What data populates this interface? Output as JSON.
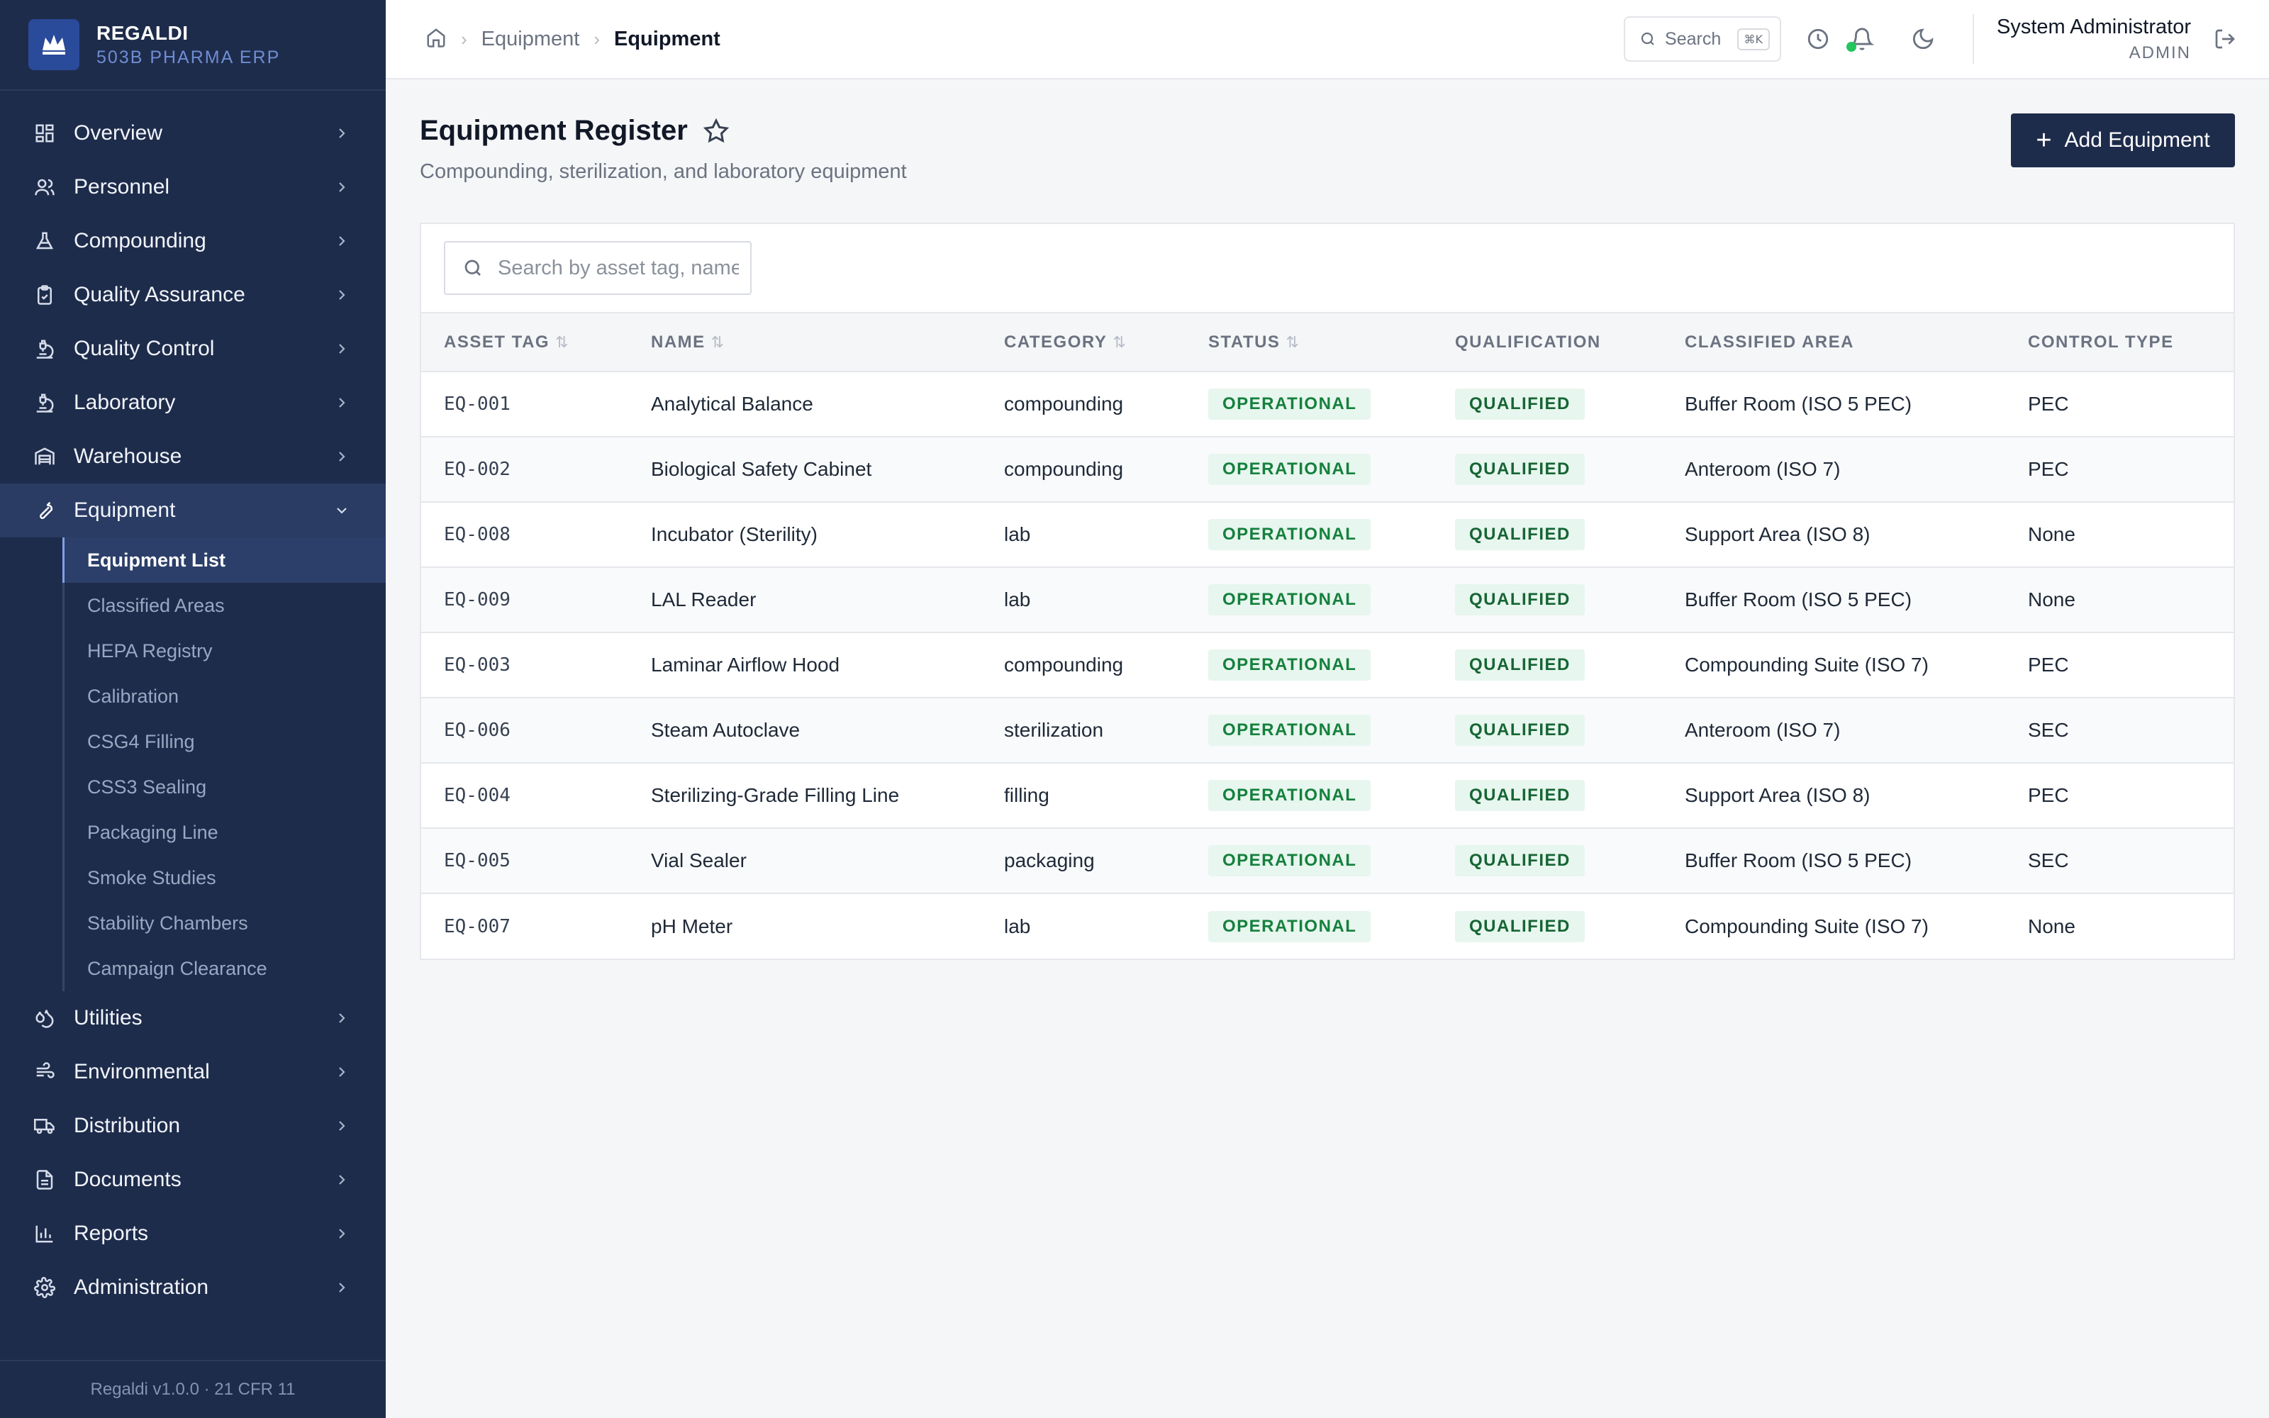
{
  "brand": {
    "name": "REGALDI",
    "subtitle": "503B PHARMA ERP",
    "logo_text": "REGALDI"
  },
  "sidebar": {
    "items": [
      {
        "label": "Overview",
        "icon": "dashboard-icon"
      },
      {
        "label": "Personnel",
        "icon": "users-icon"
      },
      {
        "label": "Compounding",
        "icon": "flask-icon"
      },
      {
        "label": "Quality Assurance",
        "icon": "clipboard-check-icon"
      },
      {
        "label": "Quality Control",
        "icon": "microscope-icon"
      },
      {
        "label": "Laboratory",
        "icon": "microscope-icon"
      },
      {
        "label": "Warehouse",
        "icon": "warehouse-icon"
      },
      {
        "label": "Equipment",
        "icon": "wrench-icon",
        "active": true
      }
    ],
    "equipment_sub": [
      "Equipment List",
      "Classified Areas",
      "HEPA Registry",
      "Calibration",
      "CSG4 Filling",
      "CSS3 Sealing",
      "Packaging Line",
      "Smoke Studies",
      "Stability Chambers",
      "Campaign Clearance"
    ],
    "items_after": [
      {
        "label": "Utilities",
        "icon": "droplets-icon"
      },
      {
        "label": "Environmental",
        "icon": "wind-icon"
      },
      {
        "label": "Distribution",
        "icon": "truck-icon"
      },
      {
        "label": "Documents",
        "icon": "document-icon"
      },
      {
        "label": "Reports",
        "icon": "bar-chart-icon"
      },
      {
        "label": "Administration",
        "icon": "gear-icon"
      }
    ],
    "footer": "Regaldi v1.0.0 · 21 CFR 11"
  },
  "topbar": {
    "breadcrumb": [
      "Equipment",
      "Equipment"
    ],
    "search_label": "Search",
    "search_kbd": "⌘K",
    "user_name": "System Administrator",
    "user_role": "ADMIN"
  },
  "page": {
    "title": "Equipment Register",
    "subtitle": "Compounding, sterilization, and laboratory equipment",
    "add_button": "Add Equipment",
    "search_placeholder": "Search by asset tag, name..."
  },
  "table": {
    "columns": [
      "ASSET TAG",
      "NAME",
      "CATEGORY",
      "STATUS",
      "QUALIFICATION",
      "CLASSIFIED AREA",
      "CONTROL TYPE"
    ],
    "rows": [
      {
        "tag": "EQ-001",
        "name": "Analytical Balance",
        "category": "compounding",
        "status": "OPERATIONAL",
        "qualification": "QUALIFIED",
        "area": "Buffer Room (ISO 5 PEC)",
        "control": "PEC"
      },
      {
        "tag": "EQ-002",
        "name": "Biological Safety Cabinet",
        "category": "compounding",
        "status": "OPERATIONAL",
        "qualification": "QUALIFIED",
        "area": "Anteroom (ISO 7)",
        "control": "PEC"
      },
      {
        "tag": "EQ-008",
        "name": "Incubator (Sterility)",
        "category": "lab",
        "status": "OPERATIONAL",
        "qualification": "QUALIFIED",
        "area": "Support Area (ISO 8)",
        "control": "None"
      },
      {
        "tag": "EQ-009",
        "name": "LAL Reader",
        "category": "lab",
        "status": "OPERATIONAL",
        "qualification": "QUALIFIED",
        "area": "Buffer Room (ISO 5 PEC)",
        "control": "None"
      },
      {
        "tag": "EQ-003",
        "name": "Laminar Airflow Hood",
        "category": "compounding",
        "status": "OPERATIONAL",
        "qualification": "QUALIFIED",
        "area": "Compounding Suite (ISO 7)",
        "control": "PEC"
      },
      {
        "tag": "EQ-006",
        "name": "Steam Autoclave",
        "category": "sterilization",
        "status": "OPERATIONAL",
        "qualification": "QUALIFIED",
        "area": "Anteroom (ISO 7)",
        "control": "SEC"
      },
      {
        "tag": "EQ-004",
        "name": "Sterilizing-Grade Filling Line",
        "category": "filling",
        "status": "OPERATIONAL",
        "qualification": "QUALIFIED",
        "area": "Support Area (ISO 8)",
        "control": "PEC"
      },
      {
        "tag": "EQ-005",
        "name": "Vial Sealer",
        "category": "packaging",
        "status": "OPERATIONAL",
        "qualification": "QUALIFIED",
        "area": "Buffer Room (ISO 5 PEC)",
        "control": "SEC"
      },
      {
        "tag": "EQ-007",
        "name": "pH Meter",
        "category": "lab",
        "status": "OPERATIONAL",
        "qualification": "QUALIFIED",
        "area": "Compounding Suite (ISO 7)",
        "control": "None"
      }
    ]
  },
  "colors": {
    "sidebar_bg": "#1e2c4b",
    "accent": "#1e2c4b",
    "badge_green": "#15803d",
    "badge_bg": "#e7f6ee",
    "notification_dot": "#22c55e"
  }
}
